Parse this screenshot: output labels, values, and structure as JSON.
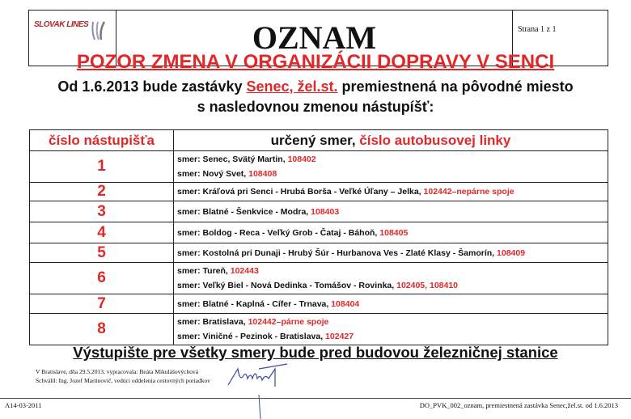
{
  "header": {
    "logo_text": "SLOVAK LINES",
    "title": "OZNAM",
    "page": "Strana 1 z 1"
  },
  "warning": "POZOR ZMENA V ORGANIZÁCII DOPRAVY V SENCI",
  "intro": {
    "pre": "Od 1.6.2013 bude zastávky ",
    "stop": "Senec, žel.st.",
    "post": " premiestnená na pôvodné miesto",
    "line2": "s nasledovnou zmenou nástupíšť:"
  },
  "table": {
    "col1": "číslo nástupišťa",
    "col2_a": "určený smer, ",
    "col2_b": "číslo autobusovej linky",
    "rows": [
      {
        "num": "1",
        "lines": [
          {
            "text": "smer:  Senec, Svätý Martin, ",
            "code": "108402"
          },
          {
            "text": "smer:  Nový Svet, ",
            "code": "108408"
          }
        ]
      },
      {
        "num": "2",
        "lines": [
          {
            "text": "smer:  Kráľová pri Senci - Hrubá Borša - Veľké Úľany – Jelka, ",
            "code": "102442–nepárne spoje"
          }
        ]
      },
      {
        "num": "3",
        "lines": [
          {
            "text": "smer:  Blatné - Šenkvice - Modra, ",
            "code": "108403"
          }
        ]
      },
      {
        "num": "4",
        "lines": [
          {
            "text": "smer:  Boldog - Reca - Veľký Grob - Čataj - Báhoň, ",
            "code": "108405"
          }
        ]
      },
      {
        "num": "5",
        "lines": [
          {
            "text": "smer:  Kostolná pri Dunaji - Hrubý Šúr - Hurbanova Ves - Zlaté Klasy - Šamorín, ",
            "code": "108409"
          }
        ]
      },
      {
        "num": "6",
        "lines": [
          {
            "text": "smer:  Tureň, ",
            "code": "102443"
          },
          {
            "text": "smer:  Veľký Biel - Nová Dedinka - Tomášov - Rovinka, ",
            "code": "102405, 108410"
          }
        ]
      },
      {
        "num": "7",
        "lines": [
          {
            "text": "smer:  Blatné - Kaplná - Cífer - Trnava, ",
            "code": "108404"
          }
        ]
      },
      {
        "num": "8",
        "lines": [
          {
            "text": "smer:  Bratislava, ",
            "code": "102442–párne spoje"
          },
          {
            "text": "smer:  Viničné - Pezinok - Bratislava, ",
            "code": "102427"
          }
        ]
      }
    ]
  },
  "exit_note": "Výstupište pre všetky smery bude pred  budovou železničnej stanice",
  "signature": {
    "line1": "V Bratislave, dňa  29.5.2013, vypracovala:  Beáta Mikulášovýchová",
    "line2": "Schválil:  Ing. Jozef Martinovič, vedúci  oddelenia cestovných   poriadkov",
    "handwritten": "Martin"
  },
  "footer": {
    "left": "A14-03-2011",
    "right": "DO_PVK_002_oznam, premiestnená zastávka Senec,žel.st. od 1.6.2013"
  },
  "colors": {
    "accent_red": "#e0282a"
  }
}
